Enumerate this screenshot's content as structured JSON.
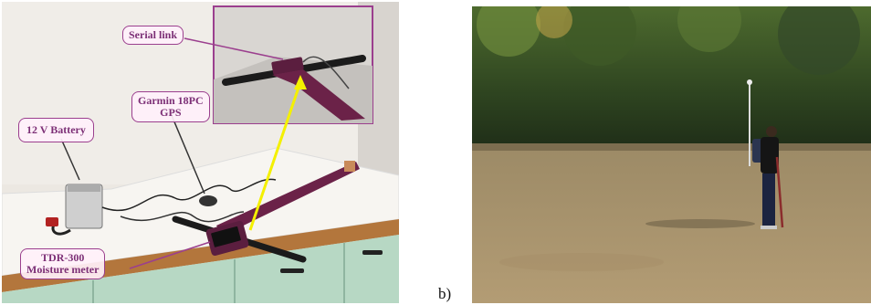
{
  "panel_a": {
    "callouts": {
      "serial_link": "Serial link",
      "gps_line1": "Garmin 18PC",
      "gps_line2": "GPS",
      "battery": "12 V Battery",
      "tdr_line1": "TDR-300",
      "tdr_line2": "Moisture meter"
    }
  },
  "panel_b": {
    "letter": "b)"
  },
  "colors": {
    "callout_border": "#9b3f8e",
    "callout_text": "#7c2f76",
    "highlight_arrow": "#f4f000"
  }
}
